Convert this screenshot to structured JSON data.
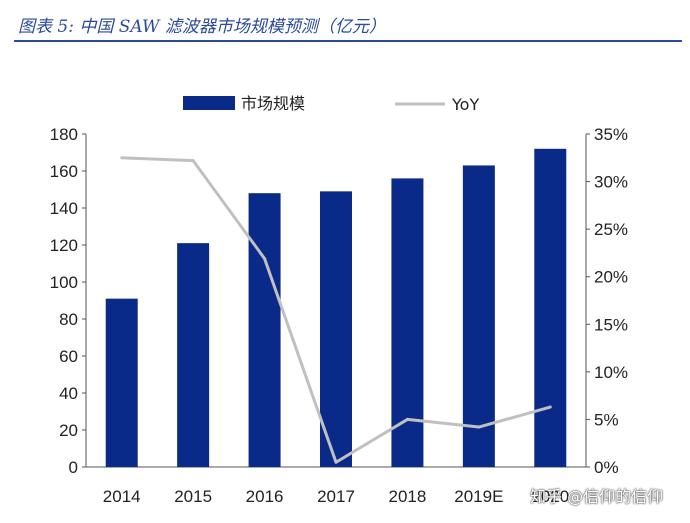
{
  "figure": {
    "title": "图表 5:  中国 SAW 滤波器市场规模预测（亿元）"
  },
  "watermark": "知乎 @信仰的信仰",
  "colors": {
    "bar": "#0a2a8a",
    "line": "#c0c0c0",
    "accent": "#2b4a9b"
  },
  "chart_data": {
    "type": "bar+line",
    "categories": [
      "2014",
      "2015",
      "2016",
      "2017",
      "2018",
      "2019E",
      "2020E"
    ],
    "category_labels": [
      "2014",
      "2015",
      "2016",
      "2017",
      "2018",
      "2019E",
      "2020"
    ],
    "series": [
      {
        "name": "市场规模",
        "type": "bar",
        "axis": "left",
        "values": [
          91,
          121,
          148,
          149,
          156,
          163,
          172
        ]
      },
      {
        "name": "YoY",
        "type": "line",
        "axis": "right",
        "values": [
          32.5,
          32.2,
          21.9,
          0.5,
          5.0,
          4.2,
          6.3
        ]
      }
    ],
    "y_left": {
      "ylim": [
        0,
        180
      ],
      "ticks": [
        0,
        20,
        40,
        60,
        80,
        100,
        120,
        140,
        160,
        180
      ]
    },
    "y_right": {
      "ylim": [
        0,
        35
      ],
      "ticks": [
        "0%",
        "5%",
        "10%",
        "15%",
        "20%",
        "25%",
        "30%",
        "35%"
      ]
    },
    "legend_position": "top",
    "grid": false
  }
}
